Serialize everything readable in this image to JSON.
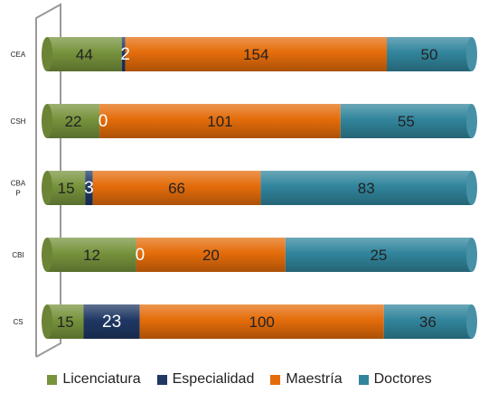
{
  "chart_data": {
    "type": "bar",
    "orientation": "horizontal",
    "stacked": "percent",
    "categories": [
      "CEA",
      "CSH",
      "CBA P",
      "CBI",
      "CS"
    ],
    "series": [
      {
        "name": "Licenciatura",
        "values": [
          44,
          22,
          15,
          12,
          15
        ],
        "color": "#77933c"
      },
      {
        "name": "Especialidad",
        "values": [
          2,
          0,
          3,
          0,
          23
        ],
        "color": "#1f3864"
      },
      {
        "name": "Maestría",
        "values": [
          154,
          101,
          66,
          20,
          100
        ],
        "color": "#e46c0a"
      },
      {
        "name": "Doctores",
        "values": [
          50,
          55,
          83,
          25,
          36
        ],
        "color": "#31859c"
      }
    ],
    "legend_position": "bottom",
    "grid": false
  }
}
